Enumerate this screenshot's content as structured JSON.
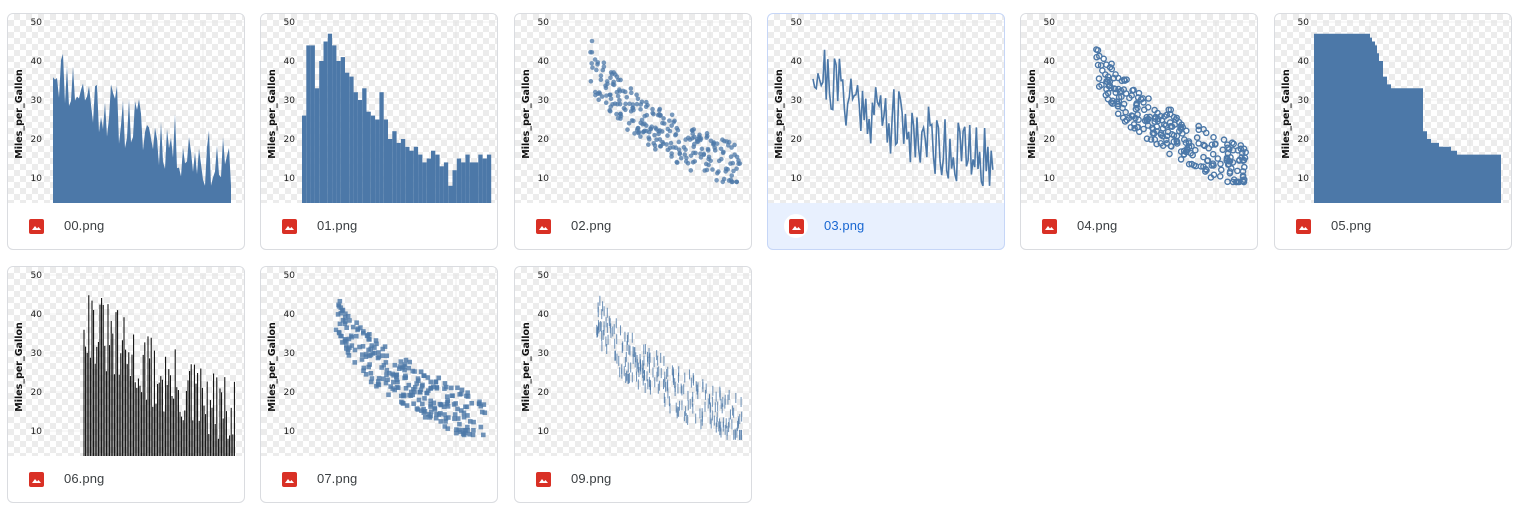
{
  "files": [
    {
      "name": "00.png",
      "chart": "area",
      "selected": false
    },
    {
      "name": "01.png",
      "chart": "bar",
      "selected": false
    },
    {
      "name": "02.png",
      "chart": "circle",
      "selected": false
    },
    {
      "name": "03.png",
      "chart": "line",
      "selected": true
    },
    {
      "name": "04.png",
      "chart": "point",
      "selected": false
    },
    {
      "name": "05.png",
      "chart": "step",
      "selected": false
    },
    {
      "name": "06.png",
      "chart": "rule",
      "selected": false
    },
    {
      "name": "07.png",
      "chart": "square",
      "selected": false
    },
    {
      "name": "09.png",
      "chart": "tick",
      "selected": false
    }
  ],
  "chart_common": {
    "ylabel": "Miles_per_Gallon",
    "yticks": [
      "10",
      "20",
      "30",
      "40",
      "50"
    ],
    "ylim": [
      5,
      50
    ],
    "color": "#4c78a8"
  },
  "icons": {
    "file_icon": "image-file-icon",
    "file_icon_color": "#d93025"
  }
}
